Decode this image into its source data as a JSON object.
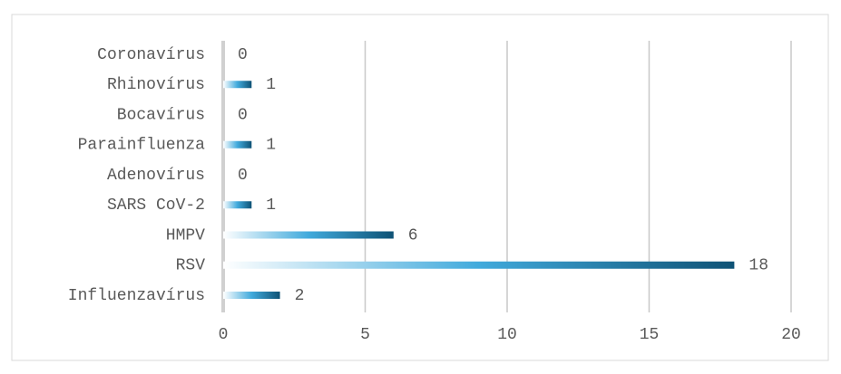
{
  "chart_data": {
    "type": "bar",
    "orientation": "horizontal",
    "categories": [
      "Influenzavírus",
      "RSV",
      "HMPV",
      "SARS CoV-2",
      "Adenovírus",
      "Parainfluenza",
      "Bocavírus",
      "Rhinovírus",
      "Coronavírus"
    ],
    "values": [
      2,
      18,
      6,
      1,
      0,
      1,
      0,
      1,
      0
    ],
    "gradient": [
      "#ffffff",
      "#41aadc",
      "#0e5275"
    ],
    "xlim": [
      0,
      20
    ],
    "xticks": [
      0,
      5,
      10,
      15,
      20
    ],
    "grid": true
  }
}
